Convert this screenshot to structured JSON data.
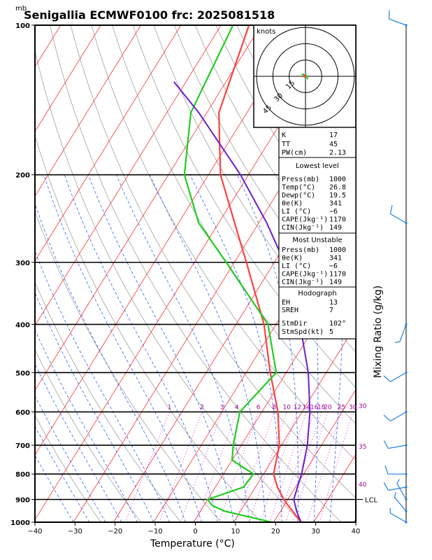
{
  "title": "Senigallia ECMWF0100  frc: 2025081518",
  "mb_label": "mb",
  "knots_label": "knots",
  "hodo_ring_labels": [
    "15",
    "30",
    "45"
  ],
  "mixing_ratio_label": "Mixing Ratio (g/kg)",
  "lcl_label": "LCL",
  "colors": {
    "temp": "#ff4040",
    "dew": "#20cc20",
    "parcel": "#6a1fd0",
    "isotherm": "#ff3030",
    "dryad": "#a0a0a0",
    "moistad": "#3060ff",
    "mixing": "#cc00cc",
    "barb": "#2080e0"
  },
  "indices": {
    "k_label": "K",
    "k": "17",
    "tt_label": "TT",
    "tt": "45",
    "pw_label": "PW(cm)",
    "pw": "2.13"
  },
  "lowest": {
    "header": "Lowest level",
    "rows": [
      {
        "label": "Press(mb)",
        "value": "1000"
      },
      {
        "label": "Temp(°C)",
        "value": "26.8"
      },
      {
        "label": "Dewp(°C)",
        "value": "19.5"
      },
      {
        "label": "θe(K)",
        "value": "341"
      },
      {
        "label": "LI (°C)",
        "value": "−6"
      },
      {
        "label": "CAPE(Jkg⁻¹)",
        "value": "1170"
      },
      {
        "label": "CIN(Jkg⁻¹)",
        "value": "149"
      }
    ]
  },
  "unstable": {
    "header": "Most Unstable",
    "rows": [
      {
        "label": "Press(mb)",
        "value": "1000"
      },
      {
        "label": "θe(K)",
        "value": "341"
      },
      {
        "label": "LI (°C)",
        "value": "−6"
      },
      {
        "label": "CAPE(Jkg⁻¹)",
        "value": "1170"
      },
      {
        "label": "CIN(Jkg⁻¹)",
        "value": "149"
      }
    ]
  },
  "hodograph": {
    "header": "Hodograph",
    "rows": [
      {
        "label": "EH",
        "value": "13"
      },
      {
        "label": "SREH",
        "value": "7"
      },
      {
        "label": "StmDir",
        "value": "102°"
      },
      {
        "label": "StmSpd(kt)",
        "value": "5"
      }
    ]
  },
  "chart_data": {
    "type": "line",
    "title": "Senigallia ECMWF0100  frc: 2025081518",
    "xlabel": "Temperature (°C)",
    "ylabel": "",
    "xlim": [
      -40,
      40
    ],
    "pressure_ticks": [
      100,
      200,
      300,
      400,
      500,
      600,
      700,
      800,
      900,
      1000
    ],
    "temperature_ticks": [
      -40,
      -30,
      -20,
      -10,
      0,
      10,
      20,
      30,
      40
    ],
    "mixing_ratio_ticks": [
      "1",
      "2",
      "3",
      "4",
      "6",
      "8",
      "10",
      "12",
      "14",
      "16",
      "18",
      "20",
      "25",
      "30"
    ],
    "right_annotations": [
      "30",
      "35",
      "40"
    ],
    "series": [
      {
        "key": "temperature",
        "pressure": [
          1000,
          950,
          925,
          900,
          850,
          800,
          700,
          600,
          500,
          400,
          300,
          250,
          200,
          150,
          100
        ],
        "temperature": [
          26.8,
          23.0,
          21.0,
          19.0,
          15.5,
          12.5,
          9.5,
          4.0,
          -4.0,
          -13.0,
          -27.0,
          -36.0,
          -47.0,
          -57.0,
          -63.0
        ]
      },
      {
        "key": "dewpoint",
        "pressure": [
          1000,
          950,
          925,
          900,
          850,
          800,
          750,
          700,
          600,
          500,
          400,
          300,
          250,
          200,
          150,
          100
        ],
        "dewpoint": [
          19.5,
          6.0,
          2.0,
          0.0,
          7.0,
          7.5,
          0.0,
          -2.0,
          -5.5,
          -2.5,
          -12.0,
          -32.0,
          -45.0,
          -56.0,
          -64.0,
          -67.0
        ]
      },
      {
        "key": "parcel",
        "pressure": [
          1000,
          950,
          900,
          850,
          800,
          700,
          600,
          500,
          400,
          300,
          250,
          200,
          150,
          130
        ],
        "temperature": [
          26.8,
          24.0,
          21.5,
          20.5,
          19.5,
          16.5,
          12.0,
          5.5,
          -4.0,
          -17.5,
          -28.0,
          -42.0,
          -62.0,
          -73.0
        ]
      }
    ],
    "wind_barbs": [
      {
        "pressure": 100,
        "speed_kt": 10,
        "dir": 290
      },
      {
        "pressure": 250,
        "speed_kt": 10,
        "dir": 300
      },
      {
        "pressure": 400,
        "speed_kt": 5,
        "dir": 200
      },
      {
        "pressure": 500,
        "speed_kt": 10,
        "dir": 240
      },
      {
        "pressure": 600,
        "speed_kt": 10,
        "dir": 240
      },
      {
        "pressure": 700,
        "speed_kt": 10,
        "dir": 260
      },
      {
        "pressure": 800,
        "speed_kt": 10,
        "dir": 270
      },
      {
        "pressure": 850,
        "speed_kt": 10,
        "dir": 260
      },
      {
        "pressure": 900,
        "speed_kt": 5,
        "dir": 330
      },
      {
        "pressure": 950,
        "speed_kt": 5,
        "dir": 320
      },
      {
        "pressure": 1000,
        "speed_kt": 5,
        "dir": 300
      }
    ],
    "lcl_pressure": 900,
    "hodograph_points": [
      [
        0,
        0
      ],
      [
        -3,
        2
      ],
      [
        -5,
        3
      ],
      [
        1,
        1
      ],
      [
        3,
        -4
      ]
    ]
  }
}
